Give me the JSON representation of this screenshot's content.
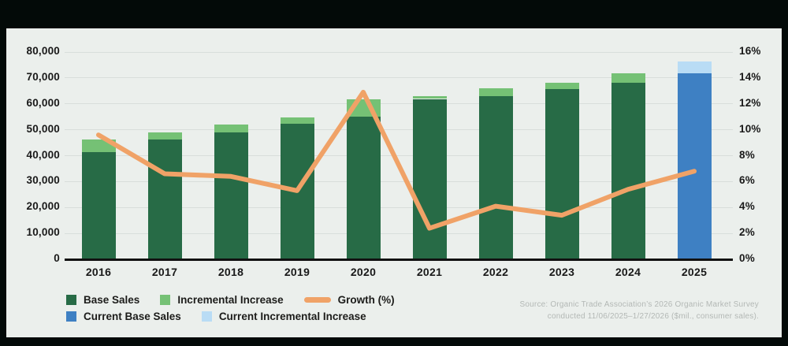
{
  "colors": {
    "frame_bg": "#030a08",
    "panel_bg": "#ebefec",
    "gridline": "#d8dedb",
    "axis_line": "#111111",
    "label_text": "#191919",
    "source_text": "#b3b8b5"
  },
  "chart_data": {
    "type": "bar",
    "subtype": "stacked-bars-with-line",
    "title": "",
    "categories": [
      "2016",
      "2017",
      "2018",
      "2019",
      "2020",
      "2021",
      "2022",
      "2023",
      "2024",
      "2025"
    ],
    "series": [
      {
        "name": "Base Sales",
        "color": "#276b46",
        "values": [
          41500,
          46200,
          49000,
          52200,
          55000,
          61900,
          63100,
          65800,
          68100,
          null
        ]
      },
      {
        "name": "Incremental Increase",
        "color": "#75c175",
        "values": [
          4700,
          2800,
          3100,
          2700,
          6900,
          1200,
          2900,
          2300,
          3600,
          null
        ]
      },
      {
        "name": "Current Base Sales",
        "color": "#3e80c3",
        "values": [
          null,
          null,
          null,
          null,
          null,
          null,
          null,
          null,
          null,
          71800
        ]
      },
      {
        "name": "Current Incremental Increase",
        "color": "#b9dcf5",
        "values": [
          null,
          null,
          null,
          null,
          null,
          null,
          null,
          null,
          null,
          4700
        ]
      }
    ],
    "line_series": {
      "name": "Growth (%)",
      "color": "#f0a267",
      "axis": "right",
      "values": [
        9.6,
        6.6,
        6.4,
        5.3,
        12.9,
        2.4,
        4.1,
        3.4,
        5.4,
        6.8
      ]
    },
    "left_axis": {
      "max": 80000,
      "step": 10000,
      "tick_labels": [
        "80,000",
        "70,000",
        "60,000",
        "50,000",
        "40,000",
        "30,000",
        "20,000",
        "10,000",
        "0"
      ]
    },
    "right_axis": {
      "max": 16,
      "step": 2,
      "tick_labels": [
        "16%",
        "14%",
        "12%",
        "10%",
        "8%",
        "6%",
        "4%",
        "2%",
        "0%"
      ]
    },
    "grid": true,
    "legend_position": "bottom-left"
  },
  "legend": {
    "rows": [
      [
        {
          "swatch": "square",
          "color": "#276b46",
          "label": "Base Sales"
        },
        {
          "swatch": "square",
          "color": "#75c175",
          "label": "Incremental Increase"
        },
        {
          "swatch": "line",
          "color": "#f0a267",
          "label": "Growth (%)"
        }
      ],
      [
        {
          "swatch": "square",
          "color": "#3e80c3",
          "label": "Current Base Sales"
        },
        {
          "swatch": "square",
          "color": "#b9dcf5",
          "label": "Current Incremental Increase"
        }
      ]
    ]
  },
  "source": {
    "line1": "Source: Organic Trade Association’s 2026 Organic Market Survey",
    "line2": "conducted 11/06/2025–1/27/2026 ($mil., consumer sales)."
  }
}
